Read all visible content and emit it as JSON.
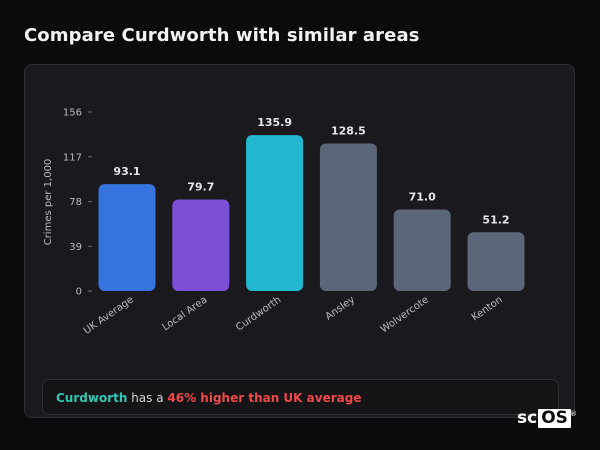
{
  "page": {
    "title": "Compare Curdworth with similar areas"
  },
  "chart_data": {
    "type": "bar",
    "ylabel": "Crimes per 1,000",
    "xlabel": "",
    "ylim": [
      0,
      156
    ],
    "yticks": [
      "0",
      "39",
      "78",
      "117",
      "156"
    ],
    "categories": [
      "UK Average",
      "Local Area",
      "Curdworth",
      "Ansley",
      "Wolvercote",
      "Kenton"
    ],
    "values": [
      93.1,
      79.7,
      135.9,
      128.5,
      71.0,
      51.2
    ],
    "value_labels": [
      "93.1",
      "79.7",
      "135.9",
      "128.5",
      "71.0",
      "51.2"
    ],
    "bar_colors": [
      "#3574df",
      "#7b4fd6",
      "#22b7cf",
      "#5b6779",
      "#5b6779",
      "#5b6779"
    ],
    "grid": false,
    "legend": "none"
  },
  "summary": {
    "area": "Curdworth",
    "middle": " has a ",
    "stat": "46% higher than UK average"
  },
  "logo": {
    "prefix": "sc",
    "boxed": "OS",
    "mark": "®"
  },
  "colors": {
    "background": "#0b0b0d",
    "card": "#1a1a1e",
    "area_highlight": "#2ec7b3",
    "stat_highlight": "#ef4848"
  }
}
